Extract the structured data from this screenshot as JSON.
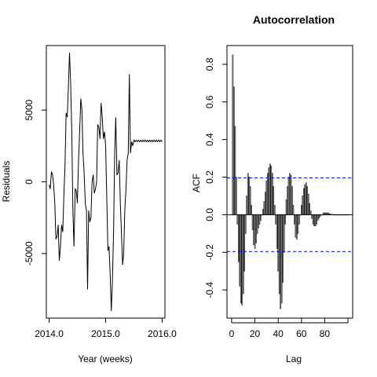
{
  "chart_data": [
    {
      "type": "line",
      "title": "",
      "xlabel": "Year (weeks)",
      "ylabel": "Residuals",
      "xlim": [
        2014.0,
        2016.0
      ],
      "ylim": [
        -9500,
        9500
      ],
      "xticks": [
        {
          "value": 2014.0,
          "label": "2014.0"
        },
        {
          "value": 2015.0,
          "label": "2015.0"
        },
        {
          "value": 2016.0,
          "label": "2016.0"
        }
      ],
      "yticks": [
        {
          "value": -5000,
          "label": "-5000"
        },
        {
          "value": 0,
          "label": "0"
        },
        {
          "value": 5000,
          "label": "5000"
        }
      ],
      "x": [
        2014.0,
        2014.02,
        2014.04,
        2014.06,
        2014.08,
        2014.1,
        2014.12,
        2014.14,
        2014.16,
        2014.18,
        2014.2,
        2014.22,
        2014.24,
        2014.26,
        2014.28,
        2014.3,
        2014.32,
        2014.34,
        2014.36,
        2014.38,
        2014.4,
        2014.42,
        2014.44,
        2014.46,
        2014.48,
        2014.5,
        2014.52,
        2014.54,
        2014.56,
        2014.58,
        2014.6,
        2014.62,
        2014.64,
        2014.66,
        2014.68,
        2014.7,
        2014.72,
        2014.74,
        2014.76,
        2014.78,
        2014.8,
        2014.82,
        2014.84,
        2014.86,
        2014.88,
        2014.9,
        2014.92,
        2014.94,
        2014.96,
        2014.98,
        2015.0,
        2015.02,
        2015.04,
        2015.06,
        2015.08,
        2015.1,
        2015.12,
        2015.14,
        2015.16,
        2015.18,
        2015.2,
        2015.22,
        2015.24,
        2015.26,
        2015.28,
        2015.3,
        2015.32,
        2015.34,
        2015.36,
        2015.38,
        2015.4,
        2015.42,
        2015.44,
        2015.46,
        2015.48,
        2015.5,
        2015.52,
        2015.54,
        2015.56,
        2015.58,
        2015.6,
        2015.62,
        2015.64,
        2015.66,
        2015.68,
        2015.7,
        2015.72,
        2015.74,
        2015.76,
        2015.78,
        2015.8,
        2015.82,
        2015.84,
        2015.86,
        2015.88,
        2015.9,
        2015.92,
        2015.94,
        2015.96,
        2015.98,
        2016.0
      ],
      "series": [
        {
          "values": [
            -200,
            -500,
            700,
            500,
            -200,
            -1500,
            -4000,
            -3800,
            -3000,
            -5500,
            -4500,
            -3000,
            -3500,
            -1000,
            1000,
            4800,
            4500,
            6500,
            9000,
            7000,
            3500,
            -2000,
            -4500,
            -500,
            -600,
            -1500,
            1500,
            3500,
            5800,
            5000,
            2000,
            500,
            -1500,
            -2000,
            -7500,
            -2000,
            -2800,
            -2500,
            0,
            500,
            -800,
            -500,
            0,
            4000,
            3800,
            3000,
            5500,
            4500,
            3000,
            3500,
            2500,
            -1000,
            -4800,
            -4500,
            -6500,
            -9000,
            -7000,
            -3500,
            2000,
            4500,
            500,
            600,
            1500,
            -1500,
            -3500,
            -5800,
            -5000,
            -2000,
            -500,
            1500,
            2000,
            7500,
            2000,
            2800,
            2500,
            2900,
            2800,
            2900,
            2800,
            2900,
            2800,
            2900,
            2800,
            2900,
            2800,
            2900,
            2800,
            2900,
            2800,
            2900,
            2800,
            2900,
            2800,
            2900,
            2800,
            2900,
            2800,
            2900,
            2800,
            2900,
            2800
          ]
        }
      ]
    },
    {
      "type": "bar",
      "title": "Autocorrelation",
      "xlabel": "Lag",
      "ylabel": "ACF",
      "xlim": [
        -4,
        104
      ],
      "ylim": [
        -0.55,
        0.9
      ],
      "xticks": [
        {
          "value": 0,
          "label": "0"
        },
        {
          "value": 20,
          "label": "20"
        },
        {
          "value": 40,
          "label": "40"
        },
        {
          "value": 60,
          "label": "60"
        },
        {
          "value": 80,
          "label": "80"
        }
      ],
      "yticks": [
        {
          "value": -0.4,
          "label": "-0.4"
        },
        {
          "value": -0.2,
          "label": "-0.2"
        },
        {
          "value": 0.0,
          "label": "0.0"
        },
        {
          "value": 0.2,
          "label": "0.2"
        },
        {
          "value": 0.4,
          "label": "0.4"
        },
        {
          "value": 0.6,
          "label": "0.6"
        },
        {
          "value": 0.8,
          "label": "0.8"
        }
      ],
      "confidence_band": 0.196,
      "series": [
        {
          "lags": [
            1,
            2,
            3,
            4,
            5,
            6,
            7,
            8,
            9,
            10,
            11,
            12,
            13,
            14,
            15,
            16,
            17,
            18,
            19,
            20,
            21,
            22,
            23,
            24,
            25,
            26,
            27,
            28,
            29,
            30,
            31,
            32,
            33,
            34,
            35,
            36,
            37,
            38,
            39,
            40,
            41,
            42,
            43,
            44,
            45,
            46,
            47,
            48,
            49,
            50,
            51,
            52,
            53,
            54,
            55,
            56,
            57,
            58,
            59,
            60,
            61,
            62,
            63,
            64,
            65,
            66,
            67,
            68,
            69,
            70,
            71,
            72,
            73,
            74,
            75,
            76,
            77,
            78,
            79,
            80,
            81,
            82,
            83,
            84,
            85,
            86,
            87,
            88,
            89,
            90,
            91,
            92,
            93,
            94,
            95,
            96,
            97,
            98,
            99,
            100
          ],
          "values": [
            0.85,
            0.68,
            0.47,
            0.2,
            -0.05,
            -0.25,
            -0.38,
            -0.47,
            -0.48,
            -0.42,
            -0.3,
            -0.1,
            0.1,
            0.22,
            0.2,
            0.15,
            0.05,
            -0.08,
            -0.16,
            -0.18,
            -0.15,
            -0.1,
            -0.07,
            -0.05,
            -0.03,
            0.0,
            0.03,
            0.07,
            0.12,
            0.18,
            0.22,
            0.25,
            0.27,
            0.26,
            0.22,
            0.15,
            0.05,
            -0.05,
            -0.18,
            -0.3,
            -0.42,
            -0.5,
            -0.47,
            -0.36,
            -0.2,
            -0.05,
            0.08,
            0.15,
            0.2,
            0.22,
            0.21,
            0.15,
            0.05,
            -0.05,
            -0.12,
            -0.13,
            -0.1,
            -0.05,
            0.0,
            0.05,
            0.1,
            0.14,
            0.16,
            0.17,
            0.15,
            0.11,
            0.06,
            0.02,
            -0.02,
            -0.05,
            -0.06,
            -0.06,
            -0.05,
            -0.03,
            -0.02,
            -0.01,
            0.0,
            0.0,
            0.01,
            0.01,
            0.01,
            0.01,
            0.01,
            0.005,
            0.003,
            0.002,
            0.001,
            0.001,
            0,
            0,
            0,
            0,
            0,
            0,
            0,
            0,
            0,
            0,
            0,
            0
          ]
        }
      ]
    }
  ]
}
